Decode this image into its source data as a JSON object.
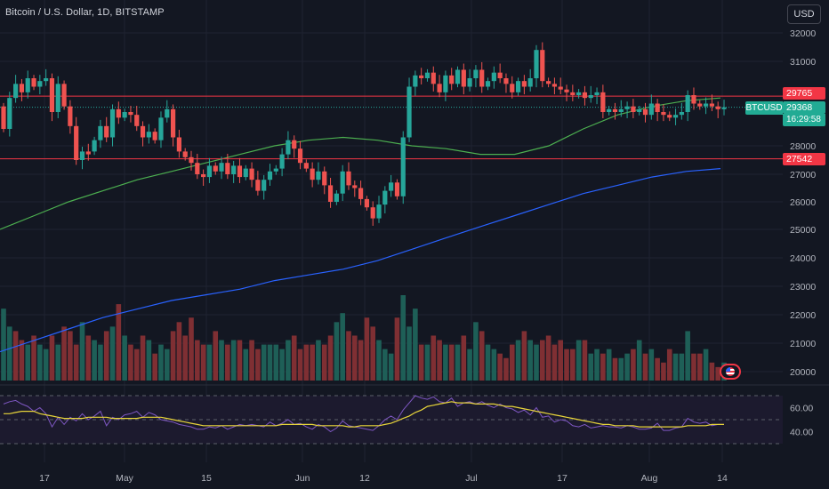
{
  "header": {
    "title": "Bitcoin / U.S. Dollar, 1D, BITSTAMP",
    "currency_button": "USD"
  },
  "price_labels": {
    "resistance": "29765",
    "current": "29368",
    "countdown": "16:29:58",
    "support": "27542",
    "ticker": "BTCUSD"
  },
  "colors": {
    "background": "#131722",
    "up": "#26a69a",
    "down": "#ef5350",
    "ma_short": "#4caf50",
    "ma_long": "#2962ff",
    "rsi_line": "#7e57c2",
    "rsi_ma": "#e8d53a",
    "level_line": "#f23645"
  },
  "icons": {
    "event_flag": "us-flag-icon"
  },
  "chart_data": {
    "type": "candlestick",
    "title": "Bitcoin / U.S. Dollar, 1D, BITSTAMP",
    "x_ticks": [
      "17",
      "May",
      "15",
      "Jun",
      "12",
      "Jul",
      "17",
      "Aug",
      "14"
    ],
    "y_ticks": [
      "32000",
      "31000",
      "28000",
      "27000",
      "26000",
      "25000",
      "24000",
      "23000",
      "22000",
      "21000",
      "20000"
    ],
    "ylim": [
      19800,
      32300
    ],
    "horizontal_levels": [
      29765,
      27542
    ],
    "last_price": 29368,
    "candles": [
      [
        29400,
        28600
      ],
      [
        28600,
        29700
      ],
      [
        29700,
        30200
      ],
      [
        30200,
        29900
      ],
      [
        29900,
        30400
      ],
      [
        30400,
        30100
      ],
      [
        30100,
        30300
      ],
      [
        30300,
        30400
      ],
      [
        30400,
        29200
      ],
      [
        29200,
        30200
      ],
      [
        30200,
        29400
      ],
      [
        29400,
        28700
      ],
      [
        28700,
        27500
      ],
      [
        27500,
        27800
      ],
      [
        27800,
        27700
      ],
      [
        27800,
        28200
      ],
      [
        28200,
        28700
      ],
      [
        28700,
        28300
      ],
      [
        28300,
        29300
      ],
      [
        29300,
        29000
      ],
      [
        29000,
        29200
      ],
      [
        29200,
        29100
      ],
      [
        29100,
        28700
      ],
      [
        28700,
        28300
      ],
      [
        28300,
        28500
      ],
      [
        28500,
        28200
      ],
      [
        28200,
        29000
      ],
      [
        29000,
        29300
      ],
      [
        29300,
        28300
      ],
      [
        28300,
        27800
      ],
      [
        27800,
        27600
      ],
      [
        27600,
        27400
      ],
      [
        27400,
        27000
      ],
      [
        27000,
        26900
      ],
      [
        26900,
        27300
      ],
      [
        27300,
        27100
      ],
      [
        27100,
        27400
      ],
      [
        27400,
        27000
      ],
      [
        27000,
        27300
      ],
      [
        27300,
        26900
      ],
      [
        26900,
        27200
      ],
      [
        27200,
        26800
      ],
      [
        26800,
        26400
      ],
      [
        26400,
        26800
      ],
      [
        26800,
        27100
      ],
      [
        27100,
        27200
      ],
      [
        27200,
        27700
      ],
      [
        27700,
        28200
      ],
      [
        28200,
        27900
      ],
      [
        27900,
        27400
      ],
      [
        27400,
        27200
      ],
      [
        27200,
        26800
      ],
      [
        26800,
        27100
      ],
      [
        27100,
        26600
      ],
      [
        26600,
        26000
      ],
      [
        26000,
        26300
      ],
      [
        26300,
        27100
      ],
      [
        27100,
        26600
      ],
      [
        26600,
        26500
      ],
      [
        26500,
        26100
      ],
      [
        26100,
        25800
      ],
      [
        25800,
        25400
      ],
      [
        25400,
        25900
      ],
      [
        25900,
        26400
      ],
      [
        26400,
        26700
      ],
      [
        26700,
        26200
      ],
      [
        26200,
        28300
      ],
      [
        28300,
        30100
      ],
      [
        30100,
        30500
      ],
      [
        30500,
        30400
      ],
      [
        30400,
        30600
      ],
      [
        30600,
        30200
      ],
      [
        30200,
        29900
      ],
      [
        29900,
        30500
      ],
      [
        30500,
        30200
      ],
      [
        30200,
        30700
      ],
      [
        30700,
        30100
      ],
      [
        30100,
        30400
      ],
      [
        30400,
        30700
      ],
      [
        30700,
        30100
      ],
      [
        30100,
        30300
      ],
      [
        30300,
        30600
      ],
      [
        30600,
        30400
      ],
      [
        30400,
        30200
      ],
      [
        30200,
        29900
      ],
      [
        29900,
        30300
      ],
      [
        30300,
        30100
      ],
      [
        30100,
        30400
      ],
      [
        30400,
        31400
      ],
      [
        31400,
        30300
      ],
      [
        30300,
        30200
      ],
      [
        30200,
        30100
      ],
      [
        30100,
        30000
      ],
      [
        30000,
        29900
      ],
      [
        29900,
        29800
      ],
      [
        29800,
        29900
      ],
      [
        29900,
        29700
      ],
      [
        29700,
        29800
      ],
      [
        29800,
        29900
      ],
      [
        29900,
        29200
      ],
      [
        29200,
        29300
      ],
      [
        29300,
        29200
      ],
      [
        29200,
        29300
      ],
      [
        29300,
        29400
      ],
      [
        29400,
        29200
      ],
      [
        29200,
        29300
      ],
      [
        29300,
        29100
      ],
      [
        29100,
        29500
      ],
      [
        29500,
        29200
      ],
      [
        29200,
        29100
      ],
      [
        29100,
        29000
      ],
      [
        29000,
        29100
      ],
      [
        29100,
        29200
      ],
      [
        29200,
        29800
      ],
      [
        29800,
        29500
      ],
      [
        29500,
        29400
      ],
      [
        29400,
        29500
      ],
      [
        29500,
        29400
      ],
      [
        29400,
        29300
      ],
      [
        29300,
        29368
      ]
    ],
    "series": [
      {
        "type": "line",
        "values": [
          25000,
          25500,
          26000,
          26400,
          26800,
          27100,
          27400,
          27700,
          28000,
          28200,
          28300,
          28200,
          28000,
          27900,
          27700,
          27700,
          28000,
          28600,
          29100,
          29400,
          29600,
          29700
        ]
      },
      {
        "type": "line",
        "values": [
          20700,
          21100,
          21500,
          21900,
          22200,
          22500,
          22700,
          22900,
          23200,
          23400,
          23600,
          23900,
          24300,
          24700,
          25100,
          25500,
          25900,
          26300,
          26600,
          26900,
          27100,
          27200
        ]
      }
    ],
    "volume": {
      "values": [
        80,
        60,
        55,
        45,
        40,
        50,
        40,
        35,
        50,
        40,
        60,
        55,
        40,
        65,
        50,
        45,
        40,
        55,
        60,
        85,
        50,
        40,
        35,
        50,
        45,
        30,
        40,
        35,
        55,
        65,
        50,
        70,
        45,
        40,
        40,
        55,
        45,
        40,
        45,
        45,
        35,
        45,
        35,
        40,
        40,
        40,
        35,
        45,
        50,
        35,
        40,
        40,
        45,
        40,
        50,
        65,
        75,
        55,
        50,
        45,
        70,
        60,
        45,
        35,
        30,
        70,
        95,
        60,
        80,
        40,
        40,
        50,
        45,
        40,
        40,
        40,
        50,
        35,
        65,
        55,
        40,
        35,
        30,
        25,
        40,
        45,
        55,
        45,
        40,
        45,
        50,
        40,
        45,
        35,
        35,
        45,
        45,
        30,
        35,
        30,
        35,
        25,
        25,
        30,
        35,
        45,
        30,
        35,
        25,
        20,
        35,
        30,
        30,
        55,
        30,
        30,
        35,
        20,
        15,
        20
      ],
      "up_down": [
        1,
        1,
        0,
        0,
        1,
        0,
        1,
        1,
        0,
        1,
        0,
        0,
        0,
        1,
        0,
        1,
        1,
        0,
        1,
        0,
        1,
        0,
        0,
        0,
        1,
        0,
        1,
        1,
        0,
        0,
        0,
        0,
        0,
        0,
        1,
        0,
        1,
        0,
        1,
        0,
        1,
        0,
        0,
        1,
        1,
        1,
        1,
        1,
        0,
        0,
        0,
        0,
        1,
        0,
        0,
        1,
        1,
        0,
        0,
        0,
        0,
        0,
        1,
        1,
        1,
        0,
        1,
        1,
        1,
        0,
        1,
        0,
        0,
        1,
        0,
        1,
        0,
        1,
        1,
        0,
        1,
        1,
        0,
        0,
        0,
        1,
        0,
        1,
        1,
        0,
        0,
        0,
        0,
        0,
        0,
        1,
        0,
        1,
        1,
        0,
        1,
        0,
        1,
        1,
        0,
        1,
        0,
        1,
        0,
        0,
        0,
        1,
        1,
        1,
        0,
        0,
        1,
        0,
        0,
        1
      ]
    },
    "rsi": {
      "y_ticks": [
        "60.00",
        "40.00"
      ],
      "levels": [
        70,
        50,
        30
      ],
      "values": [
        63,
        65,
        66,
        63,
        61,
        57,
        60,
        55,
        44,
        52,
        46,
        52,
        49,
        55,
        50,
        53,
        57,
        45,
        52,
        50,
        54,
        55,
        57,
        52,
        56,
        54,
        50,
        49,
        48,
        46,
        45,
        44,
        42,
        42,
        44,
        43,
        45,
        42,
        44,
        46,
        45,
        46,
        45,
        44,
        48,
        45,
        47,
        50,
        46,
        47,
        44,
        42,
        46,
        44,
        40,
        43,
        49,
        45,
        44,
        43,
        42,
        41,
        45,
        50,
        53,
        50,
        58,
        64,
        70,
        68,
        67,
        69,
        65,
        64,
        68,
        61,
        64,
        65,
        63,
        65,
        62,
        60,
        63,
        60,
        59,
        56,
        58,
        54,
        60,
        52,
        53,
        48,
        50,
        49,
        45,
        44,
        46,
        43,
        44,
        45,
        44,
        44,
        43,
        45,
        44,
        42,
        42,
        43,
        47,
        41,
        41,
        43,
        44,
        51,
        48,
        47,
        48,
        45,
        46,
        46
      ],
      "ma_values": [
        55,
        55,
        56,
        57,
        57,
        57,
        55,
        54,
        53,
        52,
        51,
        51,
        51,
        51,
        52,
        52,
        52,
        52,
        51,
        51,
        51,
        51,
        51,
        52,
        52,
        52,
        52,
        51,
        50,
        49,
        48,
        47,
        46,
        45,
        45,
        45,
        45,
        45,
        45,
        45,
        45,
        45,
        45,
        45,
        45,
        45,
        46,
        46,
        46,
        46,
        46,
        46,
        45,
        45,
        45,
        45,
        45,
        44,
        44,
        45,
        45,
        45,
        45,
        46,
        47,
        49,
        51,
        53,
        56,
        58,
        61,
        62,
        63,
        64,
        65,
        64,
        64,
        64,
        63,
        63,
        63,
        63,
        62,
        61,
        61,
        60,
        59,
        58,
        57,
        56,
        55,
        54,
        53,
        52,
        51,
        50,
        49,
        48,
        47,
        46,
        46,
        45,
        45,
        45,
        45,
        44,
        44,
        44,
        44,
        44,
        44,
        44,
        44,
        45,
        45,
        45,
        45,
        46,
        46,
        46
      ]
    }
  }
}
